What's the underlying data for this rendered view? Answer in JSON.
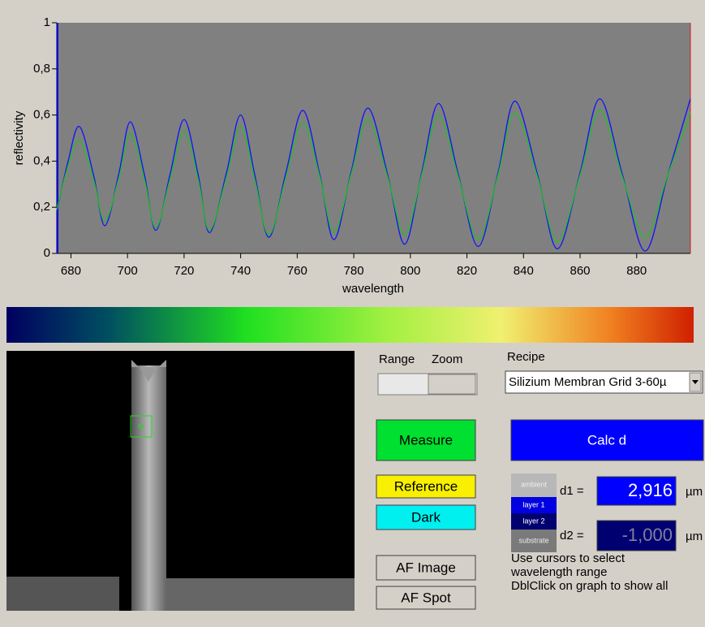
{
  "chart_data": {
    "type": "line",
    "ylabel": "reflectivity",
    "xlabel": "wavelength",
    "x": [
      675,
      679,
      683,
      688,
      692,
      697,
      701,
      706,
      710,
      715,
      720,
      725,
      729,
      735,
      740,
      745,
      750,
      756,
      762,
      768,
      773,
      779,
      785,
      792,
      798,
      804,
      810,
      817,
      824,
      831,
      837,
      845,
      852,
      860,
      867,
      875,
      883,
      891,
      899
    ],
    "series": [
      {
        "color": "#1010ff",
        "values": [
          0.18,
          0.4,
          0.55,
          0.34,
          0.12,
          0.35,
          0.57,
          0.34,
          0.1,
          0.34,
          0.58,
          0.34,
          0.09,
          0.35,
          0.6,
          0.34,
          0.07,
          0.35,
          0.62,
          0.34,
          0.06,
          0.35,
          0.63,
          0.34,
          0.04,
          0.35,
          0.65,
          0.34,
          0.03,
          0.35,
          0.66,
          0.34,
          0.02,
          0.35,
          0.67,
          0.34,
          0.01,
          0.34,
          0.67
        ]
      },
      {
        "color": "#20c020",
        "values": [
          0.19,
          0.38,
          0.49,
          0.32,
          0.14,
          0.33,
          0.52,
          0.32,
          0.11,
          0.32,
          0.53,
          0.32,
          0.1,
          0.33,
          0.55,
          0.32,
          0.08,
          0.33,
          0.57,
          0.33,
          0.09,
          0.34,
          0.58,
          0.33,
          0.08,
          0.34,
          0.6,
          0.33,
          0.06,
          0.34,
          0.61,
          0.33,
          0.05,
          0.34,
          0.62,
          0.33,
          0.07,
          0.34,
          0.61
        ]
      }
    ],
    "xlim": [
      675,
      899
    ],
    "xticks": [
      680,
      700,
      720,
      740,
      760,
      780,
      800,
      820,
      840,
      860,
      880
    ],
    "ylim": [
      0,
      1
    ],
    "yticks": [
      0,
      {
        "value": 0.2,
        "label": "0,2"
      },
      {
        "value": 0.4,
        "label": "0,4"
      },
      {
        "value": 0.6,
        "label": "0,6"
      },
      {
        "value": 0.8,
        "label": "0,8"
      },
      1
    ]
  },
  "controls": {
    "range": "Range",
    "zoom": "Zoom",
    "recipe_label": "Recipe",
    "recipe": "Silizium Membran Grid 3-60µ",
    "measure": "Measure",
    "reference": "Reference",
    "dark": "Dark",
    "af_image": "AF Image",
    "af_spot": "AF Spot",
    "calc": "Calc d",
    "layers": [
      "ambient",
      "layer 1",
      "layer 2",
      "substrate"
    ],
    "d1_label": "d1 =",
    "d1_value": "2,916",
    "d1_unit": "µm",
    "d2_label": "d2 =",
    "d2_value": "-1,000",
    "d2_unit": "µm",
    "help": [
      "Use cursors to select",
      "wavelength range",
      "DblClick on graph to show all"
    ]
  }
}
